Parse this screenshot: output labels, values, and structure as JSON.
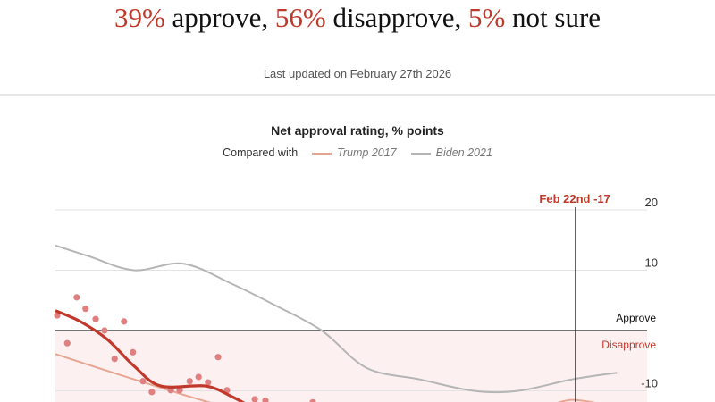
{
  "headline": {
    "approve_pct": "39%",
    "approve_label": " approve, ",
    "disapprove_pct": "56%",
    "disapprove_label": " disapprove, ",
    "notsure_pct": "5%",
    "notsure_label": " not sure"
  },
  "updated": "Last updated on February 27th 2026",
  "colors": {
    "accent": "#c0392b",
    "trump2017": "#e8a592",
    "biden2021": "#b5b5b5",
    "dots": "#e07f7f",
    "disapprove_fill": "#fdf0f1"
  },
  "chart_data": {
    "type": "line",
    "title": "Net approval rating, % points",
    "legend_prefix": "Compared with",
    "legend": [
      "Trump 2017",
      "Biden 2021"
    ],
    "legend_placement": "top",
    "ylim": [
      -12,
      20
    ],
    "xlim": [
      0,
      100
    ],
    "yticks": [
      "20",
      "10",
      "-10"
    ],
    "zero_labels": {
      "above": "Approve",
      "below": "Disapprove"
    },
    "grid": true,
    "cursor": {
      "x": 87.9,
      "label": "Feb 22nd -17"
    },
    "series": [
      {
        "name": "Biden 2021",
        "x": [
          0,
          5.7,
          13.3,
          21.6,
          29.9,
          36.7,
          45,
          52.6,
          61.6,
          70.7,
          78.2,
          87.3,
          94.9
        ],
        "y": [
          14.1,
          12.3,
          10,
          11.1,
          7.7,
          4.4,
          0,
          -6.2,
          -8.1,
          -10,
          -10,
          -8.1,
          -7
        ]
      },
      {
        "name": "Trump 2017",
        "x": [
          0,
          8.8,
          20.8,
          28.4,
          83,
          87.3,
          93
        ],
        "y": [
          -3.9,
          -6.7,
          -10.4,
          -12.6,
          -12.6,
          -11.5,
          -12.3
        ],
        "break_after": 3
      },
      {
        "trend": true,
        "x": [
          0,
          4.2,
          8.8,
          13.3,
          17.8,
          25.4,
          29.9,
          32.9
        ],
        "y": [
          3.3,
          1.5,
          -1.5,
          -5.9,
          -9.2,
          -9.2,
          -11,
          -12.6
        ]
      }
    ],
    "polls": {
      "x": [
        0.3,
        2.0,
        3.6,
        5.1,
        6.8,
        8.3,
        10.0,
        11.6,
        13.1,
        14.8,
        16.3,
        19.5,
        21.0,
        22.7,
        24.2,
        25.8,
        27.5,
        29.0,
        33.7,
        35.5,
        43.5
      ],
      "y": [
        2.5,
        -2.1,
        5.5,
        3.6,
        1.9,
        0,
        -4.7,
        1.5,
        -3.6,
        -8.4,
        -10.2,
        -9.9,
        -9.9,
        -8.4,
        -7.7,
        -8.6,
        -4.4,
        -9.9,
        -11.4,
        -11.6,
        -11.9
      ]
    }
  }
}
